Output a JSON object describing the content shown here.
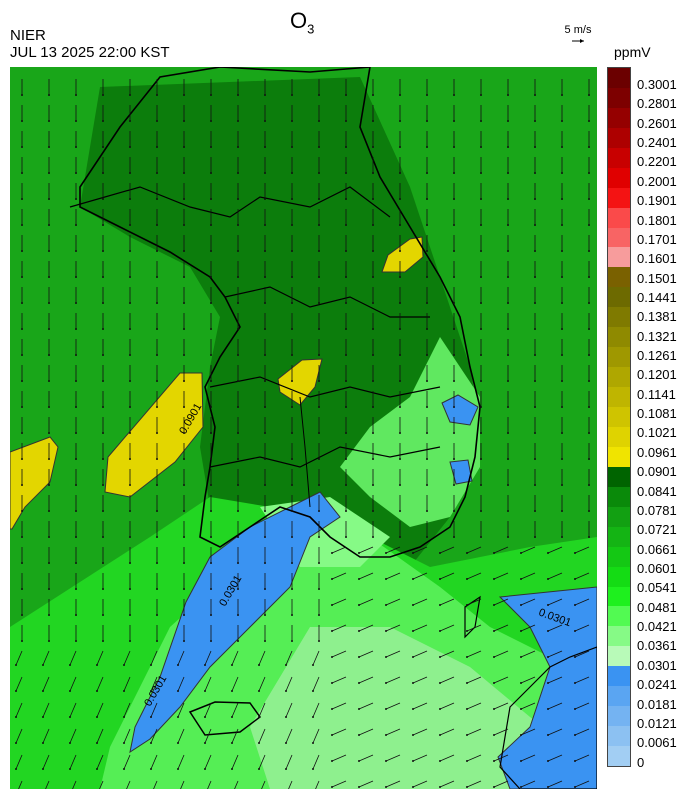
{
  "header": {
    "organization": "NIER",
    "timestamp": "JUL 13 2025 22:00 KST",
    "title_main": "O",
    "title_sub": "3",
    "vector_reference": "5 m/s",
    "unit": "ppmV"
  },
  "map": {
    "region": "Korean Peninsula",
    "contour_labels": [
      "0.0901",
      "0.0301"
    ],
    "colors": {
      "background_green": "#19a619",
      "yellow": "#e3d600",
      "blue": "#3a93f2",
      "light_green": "#8ef08e",
      "boundary": "#000000"
    }
  },
  "colorbar": {
    "labels": [
      "0.3001",
      "0.2801",
      "0.2601",
      "0.2401",
      "0.2201",
      "0.2001",
      "0.1901",
      "0.1801",
      "0.1701",
      "0.1601",
      "0.1501",
      "0.1441",
      "0.1381",
      "0.1321",
      "0.1261",
      "0.1201",
      "0.1141",
      "0.1081",
      "0.1021",
      "0.0961",
      "0.0901",
      "0.0841",
      "0.0781",
      "0.0721",
      "0.0661",
      "0.0601",
      "0.0541",
      "0.0481",
      "0.0421",
      "0.0361",
      "0.0301",
      "0.0241",
      "0.0181",
      "0.0121",
      "0.0061",
      "0"
    ],
    "colors": [
      "#6b0000",
      "#7d0000",
      "#950000",
      "#ad0000",
      "#c80000",
      "#e00000",
      "#f41313",
      "#fa4a4a",
      "#f86464",
      "#f79c9c",
      "#7a6100",
      "#6d6a00",
      "#7f7a00",
      "#8f8a00",
      "#9f9800",
      "#afa700",
      "#bfb500",
      "#cfc400",
      "#dfd300",
      "#f0e400",
      "#006400",
      "#0a8a0a",
      "#12a012",
      "#14b414",
      "#14c814",
      "#14dc14",
      "#1ef01e",
      "#52fa52",
      "#86fa86",
      "#b8fab8",
      "#3a93f2",
      "#5aa5f2",
      "#74b3f2",
      "#8cc1f2",
      "#a2cef3"
    ]
  }
}
